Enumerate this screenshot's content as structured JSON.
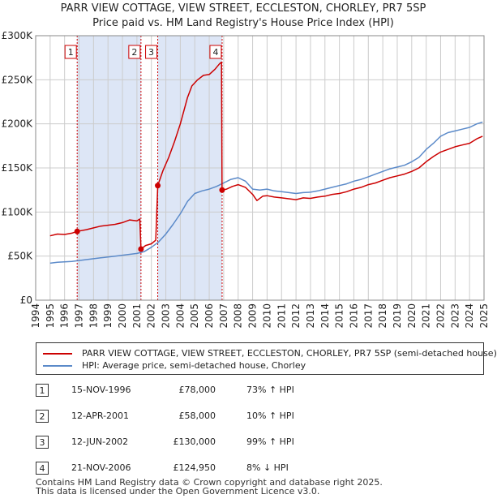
{
  "title_line1": "PARR VIEW COTTAGE, VIEW STREET, ECCLESTON, CHORLEY, PR7 5SP",
  "title_line2": "Price paid vs. HM Land Registry's House Price Index (HPI)",
  "colors": {
    "property": "#cc0000",
    "hpi": "#5b8ac9",
    "shade": "#dde6f6",
    "grid": "#cccccc"
  },
  "chart_data": {
    "type": "line",
    "x_range": [
      1994,
      2025
    ],
    "ylim": [
      0,
      300000
    ],
    "y_ticks": [
      {
        "value": 0,
        "label": "£0"
      },
      {
        "value": 50000,
        "label": "£50K"
      },
      {
        "value": 100000,
        "label": "£100K"
      },
      {
        "value": 150000,
        "label": "£150K"
      },
      {
        "value": 200000,
        "label": "£200K"
      },
      {
        "value": 250000,
        "label": "£250K"
      },
      {
        "value": 300000,
        "label": "£300K"
      }
    ],
    "x_ticks": [
      "1994",
      "1995",
      "1996",
      "1997",
      "1998",
      "1999",
      "2000",
      "2001",
      "2002",
      "2003",
      "2004",
      "2005",
      "2006",
      "2007",
      "2008",
      "2009",
      "2010",
      "2011",
      "2012",
      "2013",
      "2014",
      "2015",
      "2016",
      "2017",
      "2018",
      "2019",
      "2020",
      "2021",
      "2022",
      "2023",
      "2024",
      "2025"
    ],
    "grid": true,
    "shaded_periods": [
      [
        1996.87,
        2001.28
      ],
      [
        2002.44,
        2006.89
      ]
    ],
    "sale_markers": [
      {
        "label": "1",
        "x": 1996.87,
        "value": 78000
      },
      {
        "label": "2",
        "x": 2001.28,
        "value": 58000
      },
      {
        "label": "3",
        "x": 2002.44,
        "value": 130000
      },
      {
        "label": "4",
        "x": 2006.89,
        "value": 124950
      }
    ],
    "series": [
      {
        "name": "PARR VIEW COTTAGE, VIEW STREET, ECCLESTON, CHORLEY, PR7 5SP (semi-detached house)",
        "color": "#cc0000",
        "points": [
          [
            1995.0,
            73000
          ],
          [
            1995.5,
            75000
          ],
          [
            1996.0,
            74500
          ],
          [
            1996.5,
            76000
          ],
          [
            1996.87,
            78000
          ],
          [
            1997.5,
            80000
          ],
          [
            1998.0,
            82000
          ],
          [
            1998.5,
            84000
          ],
          [
            1999.0,
            85000
          ],
          [
            1999.5,
            86000
          ],
          [
            2000.0,
            88000
          ],
          [
            2000.5,
            91000
          ],
          [
            2001.0,
            90000
          ],
          [
            2001.2,
            92000
          ],
          [
            2001.28,
            58000
          ],
          [
            2001.6,
            62000
          ],
          [
            2002.0,
            64000
          ],
          [
            2002.3,
            68000
          ],
          [
            2002.44,
            130000
          ],
          [
            2002.8,
            147000
          ],
          [
            2003.2,
            162000
          ],
          [
            2003.6,
            180000
          ],
          [
            2004.0,
            200000
          ],
          [
            2004.5,
            230000
          ],
          [
            2004.8,
            243000
          ],
          [
            2005.2,
            250000
          ],
          [
            2005.6,
            255000
          ],
          [
            2006.0,
            256000
          ],
          [
            2006.4,
            262000
          ],
          [
            2006.7,
            268000
          ],
          [
            2006.85,
            270000
          ],
          [
            2006.89,
            124950
          ],
          [
            2007.2,
            126000
          ],
          [
            2007.6,
            129000
          ],
          [
            2008.0,
            131000
          ],
          [
            2008.5,
            128000
          ],
          [
            2009.0,
            120000
          ],
          [
            2009.3,
            113000
          ],
          [
            2009.7,
            118000
          ],
          [
            2010.0,
            118500
          ],
          [
            2010.5,
            117000
          ],
          [
            2011.0,
            116000
          ],
          [
            2011.5,
            115000
          ],
          [
            2012.0,
            114000
          ],
          [
            2012.5,
            116000
          ],
          [
            2013.0,
            115500
          ],
          [
            2013.5,
            117000
          ],
          [
            2014.0,
            118000
          ],
          [
            2014.5,
            120000
          ],
          [
            2015.0,
            121000
          ],
          [
            2015.5,
            123000
          ],
          [
            2016.0,
            126000
          ],
          [
            2016.5,
            128000
          ],
          [
            2017.0,
            131000
          ],
          [
            2017.5,
            133000
          ],
          [
            2018.0,
            136000
          ],
          [
            2018.5,
            139000
          ],
          [
            2019.0,
            141000
          ],
          [
            2019.5,
            143000
          ],
          [
            2020.0,
            146000
          ],
          [
            2020.5,
            150000
          ],
          [
            2021.0,
            157000
          ],
          [
            2021.5,
            163000
          ],
          [
            2022.0,
            168000
          ],
          [
            2022.5,
            171000
          ],
          [
            2023.0,
            174000
          ],
          [
            2023.5,
            176000
          ],
          [
            2024.0,
            178000
          ],
          [
            2024.5,
            183000
          ],
          [
            2024.9,
            186000
          ]
        ]
      },
      {
        "name": "HPI: Average price, semi-detached house, Chorley",
        "color": "#5b8ac9",
        "points": [
          [
            1995.0,
            42000
          ],
          [
            1995.5,
            43000
          ],
          [
            1996.0,
            43500
          ],
          [
            1996.5,
            44000
          ],
          [
            1997.0,
            45000
          ],
          [
            1997.5,
            46000
          ],
          [
            1998.0,
            47000
          ],
          [
            1998.5,
            48000
          ],
          [
            1999.0,
            49000
          ],
          [
            1999.5,
            50000
          ],
          [
            2000.0,
            51000
          ],
          [
            2000.5,
            52000
          ],
          [
            2001.0,
            53000
          ],
          [
            2001.5,
            55000
          ],
          [
            2002.0,
            60000
          ],
          [
            2002.5,
            66000
          ],
          [
            2003.0,
            75000
          ],
          [
            2003.5,
            86000
          ],
          [
            2004.0,
            98000
          ],
          [
            2004.5,
            112000
          ],
          [
            2005.0,
            121000
          ],
          [
            2005.5,
            124000
          ],
          [
            2006.0,
            126000
          ],
          [
            2006.5,
            129000
          ],
          [
            2007.0,
            133000
          ],
          [
            2007.5,
            137000
          ],
          [
            2008.0,
            139000
          ],
          [
            2008.5,
            135000
          ],
          [
            2009.0,
            126000
          ],
          [
            2009.5,
            125000
          ],
          [
            2010.0,
            126000
          ],
          [
            2010.5,
            124000
          ],
          [
            2011.0,
            123000
          ],
          [
            2011.5,
            122000
          ],
          [
            2012.0,
            121000
          ],
          [
            2012.5,
            122000
          ],
          [
            2013.0,
            122500
          ],
          [
            2013.5,
            124000
          ],
          [
            2014.0,
            126000
          ],
          [
            2014.5,
            128000
          ],
          [
            2015.0,
            130000
          ],
          [
            2015.5,
            132000
          ],
          [
            2016.0,
            135000
          ],
          [
            2016.5,
            137000
          ],
          [
            2017.0,
            140000
          ],
          [
            2017.5,
            143000
          ],
          [
            2018.0,
            146000
          ],
          [
            2018.5,
            149000
          ],
          [
            2019.0,
            151000
          ],
          [
            2019.5,
            153000
          ],
          [
            2020.0,
            157000
          ],
          [
            2020.5,
            162000
          ],
          [
            2021.0,
            171000
          ],
          [
            2021.5,
            178000
          ],
          [
            2022.0,
            186000
          ],
          [
            2022.5,
            190000
          ],
          [
            2023.0,
            192000
          ],
          [
            2023.5,
            194000
          ],
          [
            2024.0,
            196000
          ],
          [
            2024.5,
            200000
          ],
          [
            2024.9,
            202000
          ]
        ]
      }
    ]
  },
  "legend": {
    "property_label": "PARR VIEW COTTAGE, VIEW STREET, ECCLESTON, CHORLEY, PR7 5SP (semi-detached house)",
    "hpi_label": "HPI: Average price, semi-detached house, Chorley"
  },
  "sales": [
    {
      "num": "1",
      "date": "15-NOV-1996",
      "price": "£78,000",
      "hpi": "73% ↑ HPI"
    },
    {
      "num": "2",
      "date": "12-APR-2001",
      "price": "£58,000",
      "hpi": "10% ↑ HPI"
    },
    {
      "num": "3",
      "date": "12-JUN-2002",
      "price": "£130,000",
      "hpi": "99% ↑ HPI"
    },
    {
      "num": "4",
      "date": "21-NOV-2006",
      "price": "£124,950",
      "hpi": "8% ↓ HPI"
    }
  ],
  "footer": {
    "line1": "Contains HM Land Registry data © Crown copyright and database right 2025.",
    "line2": "This data is licensed under the Open Government Licence v3.0."
  }
}
